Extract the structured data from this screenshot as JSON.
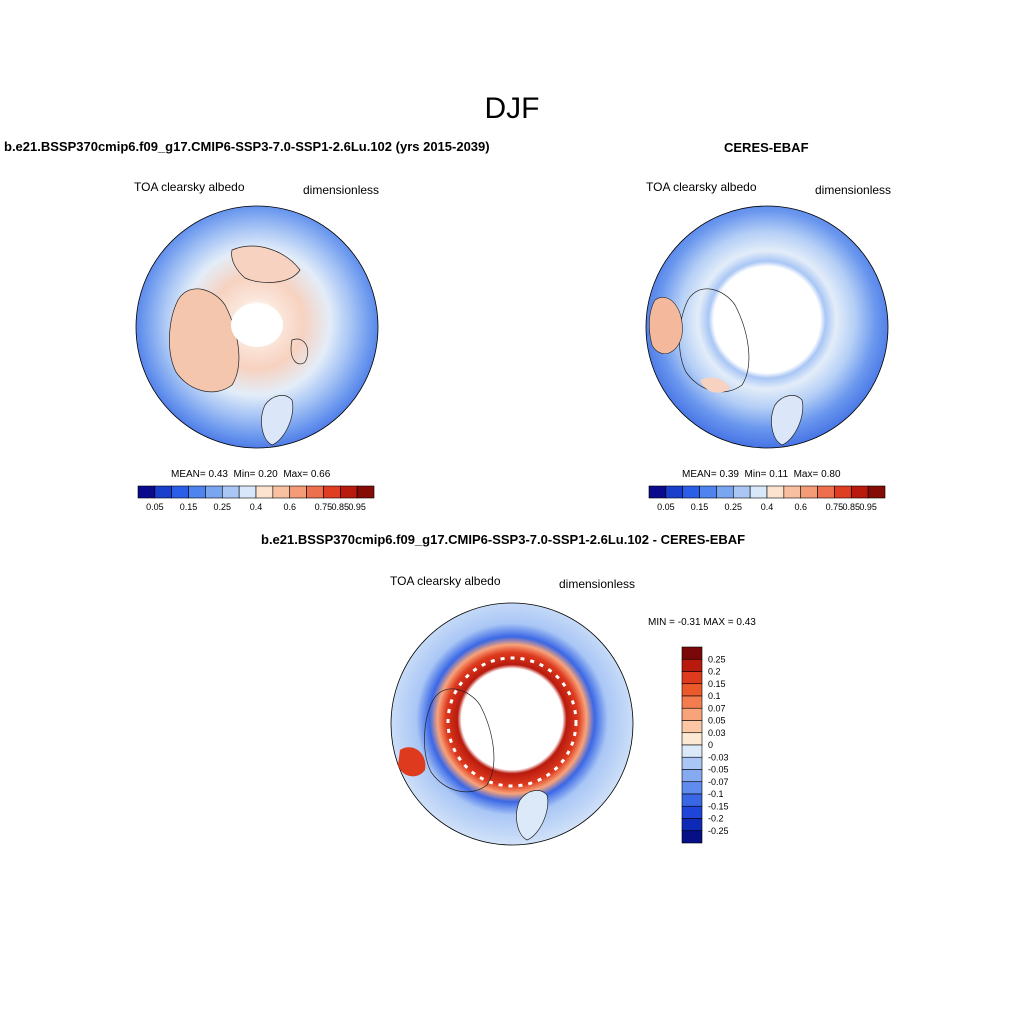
{
  "figure": {
    "title": "DJF"
  },
  "panels": [
    {
      "title": "b.e21.BSSP370cmip6.f09_g17.CMIP6-SSP3-7.0-SSP1-2.6Lu.102 (yrs 2015-2039)",
      "variable": "TOA clearsky albedo",
      "units": "dimensionless",
      "stats": {
        "mean_label": "MEAN=",
        "mean": "0.43",
        "min_label": "Min=",
        "min": "0.20",
        "max_label": "Max=",
        "max": "0.66"
      }
    },
    {
      "title": "CERES-EBAF",
      "variable": "TOA clearsky albedo",
      "units": "dimensionless",
      "stats": {
        "mean_label": "MEAN=",
        "mean": "0.39",
        "min_label": "Min=",
        "min": "0.11",
        "max_label": "Max=",
        "max": "0.80"
      }
    },
    {
      "title": "b.e21.BSSP370cmip6.f09_g17.CMIP6-SSP3-7.0-SSP1-2.6Lu.102 - CERES-EBAF",
      "variable": "TOA clearsky albedo",
      "units": "dimensionless",
      "stats": {
        "min_label": "MIN =",
        "min": "-0.31",
        "max_label": "MAX =",
        "max": "0.43"
      }
    }
  ],
  "colorbars": {
    "abs": {
      "colors": [
        "#0a0a8c",
        "#1a3fcc",
        "#2b5ee8",
        "#4f84ee",
        "#7aa6f0",
        "#a9c6f5",
        "#d8e8fa",
        "#fce3cf",
        "#f8c0a0",
        "#f49b78",
        "#ee6f4d",
        "#e03e22",
        "#b81a0e",
        "#840b06"
      ],
      "labels": [
        "0.05",
        "0.15",
        "0.25",
        "0.4",
        "0.6",
        "0.75",
        "0.85",
        "0.95"
      ]
    },
    "diff": {
      "colors": [
        "#7a0808",
        "#b81a0e",
        "#de3a1e",
        "#ec5a2c",
        "#f47d50",
        "#f8a37a",
        "#fcc7a5",
        "#fde8d4",
        "#dbe9f9",
        "#a9c6f5",
        "#86aaf0",
        "#5f8cee",
        "#3a67e6",
        "#1f45d8",
        "#0e28b8",
        "#070f86"
      ],
      "labels": [
        "0.25",
        "0.2",
        "0.15",
        "0.1",
        "0.07",
        "0.05",
        "0.03",
        "0",
        "-0.03",
        "-0.05",
        "-0.07",
        "-0.1",
        "-0.15",
        "-0.2",
        "-0.25"
      ]
    }
  },
  "maps": {
    "ocean_color": "#4a7ce8",
    "pole_color": "#ffffff"
  }
}
